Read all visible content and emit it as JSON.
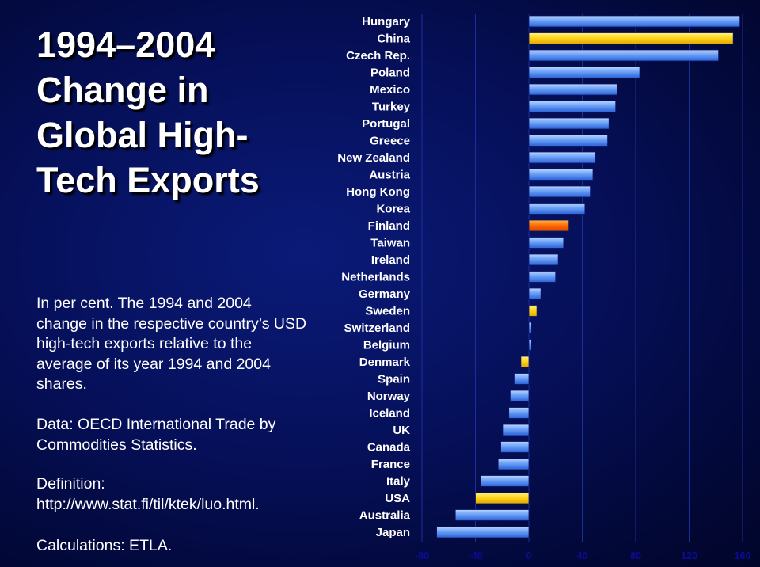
{
  "title_lines": [
    "1994–2004",
    "Change in",
    "Global High-",
    "Tech Exports"
  ],
  "description_lines": [
    "In per cent. The 1994 and 2004",
    "change in the respective country’s USD",
    "high-tech exports relative to the",
    "average of its year 1994 and 2004",
    "shares."
  ],
  "source_lines": [
    "Data: OECD International Trade by",
    "Commodities Statistics."
  ],
  "definition_lines": [
    "Definition:",
    "http://www.stat.fi/til/ktek/luo.html."
  ],
  "calculations_line": "Calculations: ETLA.",
  "colors": {
    "default_bar": "#4d8af0",
    "highlight_yellow": "#ffd21a",
    "highlight_orange": "#ff6a00",
    "background": "#06105a",
    "tick_text": "#0c0a99"
  },
  "chart_data": {
    "type": "bar",
    "orientation": "horizontal",
    "categories": [
      "Hungary",
      "China",
      "Czech Rep.",
      "Poland",
      "Mexico",
      "Turkey",
      "Portugal",
      "Greece",
      "New Zealand",
      "Austria",
      "Hong Kong",
      "Korea",
      "Finland",
      "Taiwan",
      "Ireland",
      "Netherlands",
      "Germany",
      "Sweden",
      "Switzerland",
      "Belgium",
      "Denmark",
      "Spain",
      "Norway",
      "Iceland",
      "UK",
      "Canada",
      "France",
      "Italy",
      "USA",
      "Australia",
      "Japan"
    ],
    "values": [
      158,
      153,
      142,
      83,
      66,
      65,
      60,
      59,
      50,
      48,
      46,
      42,
      30,
      26,
      22,
      20,
      9,
      6,
      2,
      2,
      -6,
      -11,
      -14,
      -15,
      -19,
      -21,
      -23,
      -36,
      -40,
      -55,
      -69
    ],
    "highlight": {
      "China": "highlight_yellow",
      "Finland": "highlight_orange",
      "Sweden": "highlight_yellow",
      "Denmark": "highlight_yellow",
      "USA": "highlight_yellow"
    },
    "xlim": [
      -80,
      160
    ],
    "xticks": [
      -80,
      -40,
      0,
      40,
      80,
      120,
      160
    ],
    "xticklabels": [
      "-80",
      "-40",
      "0",
      "40",
      "80",
      "120",
      "160"
    ],
    "grid": true,
    "xlabel": "",
    "ylabel": ""
  }
}
